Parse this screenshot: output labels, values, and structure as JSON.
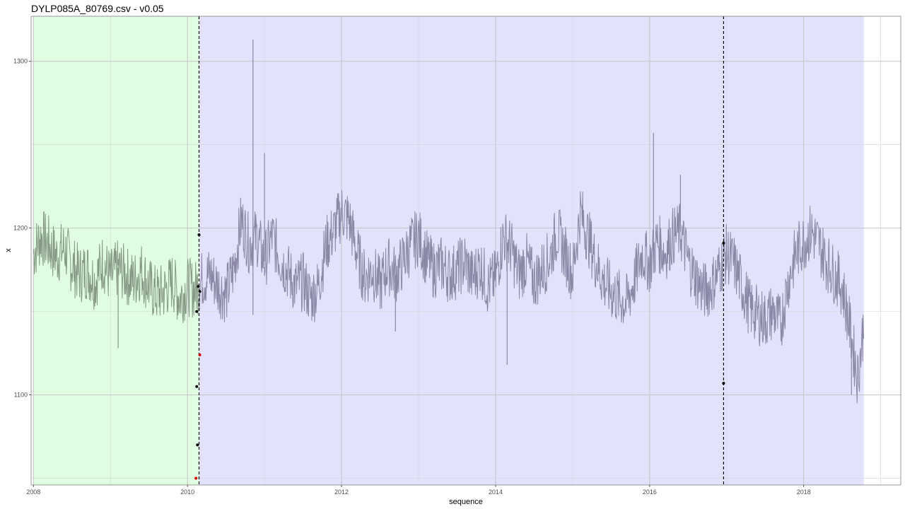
{
  "chart_data": {
    "type": "line",
    "title": "DYLP085A_80769.csv - v0.05",
    "xlabel": "sequence",
    "ylabel": "x",
    "x_ticks": [
      "2008",
      "2010",
      "2012",
      "2014",
      "2016",
      "2018"
    ],
    "y_ticks": [
      "1100",
      "1200",
      "1300"
    ],
    "xlim": [
      2007.97,
      2019.26
    ],
    "ylim": [
      1046,
      1327
    ],
    "grid": true,
    "segments": [
      {
        "start": 2008.0,
        "end": 2010.15,
        "color": "#e1fde1",
        "line_color": "#859985"
      },
      {
        "start": 2010.15,
        "end": 2018.78,
        "color": "#e3e2fd",
        "line_color": "#8a88a4"
      }
    ],
    "changepoints": [
      2010.15,
      2016.96
    ],
    "series": [
      {
        "x": [
          2008.0,
          2008.1,
          2008.2,
          2008.3,
          2008.4,
          2008.5,
          2008.6,
          2008.7,
          2008.8,
          2008.9,
          2009.0,
          2009.1,
          2009.2,
          2009.3,
          2009.4,
          2009.5,
          2009.6,
          2009.7,
          2009.8,
          2009.9,
          2010.0,
          2010.1,
          2010.2,
          2010.3,
          2010.4,
          2010.5,
          2010.6,
          2010.7,
          2010.8,
          2010.9,
          2011.0,
          2011.1,
          2011.2,
          2011.3,
          2011.4,
          2011.5,
          2011.6,
          2011.7,
          2011.8,
          2011.9,
          2012.0,
          2012.1,
          2012.2,
          2012.3,
          2012.4,
          2012.5,
          2012.6,
          2012.7,
          2012.8,
          2012.9,
          2013.0,
          2013.1,
          2013.2,
          2013.3,
          2013.4,
          2013.5,
          2013.6,
          2013.7,
          2013.8,
          2013.9,
          2014.0,
          2014.1,
          2014.2,
          2014.3,
          2014.4,
          2014.5,
          2014.6,
          2014.7,
          2014.8,
          2014.9,
          2015.0,
          2015.1,
          2015.2,
          2015.3,
          2015.4,
          2015.5,
          2015.6,
          2015.7,
          2015.8,
          2015.9,
          2016.0,
          2016.1,
          2016.2,
          2016.3,
          2016.4,
          2016.5,
          2016.6,
          2016.7,
          2016.8,
          2016.9,
          2017.0,
          2017.1,
          2017.2,
          2017.3,
          2017.4,
          2017.5,
          2017.6,
          2017.7,
          2017.8,
          2017.9,
          2018.0,
          2018.1,
          2018.2,
          2018.3,
          2018.4,
          2018.5,
          2018.6,
          2018.7,
          2018.78
        ],
        "y": [
          1185,
          1195,
          1190,
          1183,
          1188,
          1178,
          1172,
          1175,
          1168,
          1180,
          1170,
          1176,
          1172,
          1168,
          1175,
          1165,
          1160,
          1162,
          1168,
          1158,
          1165,
          1163,
          1170,
          1172,
          1165,
          1160,
          1175,
          1205,
          1190,
          1195,
          1180,
          1195,
          1182,
          1174,
          1165,
          1168,
          1158,
          1165,
          1190,
          1198,
          1210,
          1205,
          1185,
          1170,
          1175,
          1165,
          1178,
          1172,
          1180,
          1190,
          1195,
          1182,
          1175,
          1178,
          1172,
          1175,
          1180,
          1170,
          1178,
          1165,
          1170,
          1195,
          1188,
          1172,
          1180,
          1168,
          1175,
          1182,
          1198,
          1185,
          1172,
          1210,
          1195,
          1180,
          1168,
          1162,
          1158,
          1155,
          1168,
          1185,
          1178,
          1192,
          1185,
          1195,
          1198,
          1180,
          1170,
          1162,
          1165,
          1175,
          1185,
          1178,
          1165,
          1152,
          1148,
          1145,
          1150,
          1142,
          1168,
          1185,
          1192,
          1198,
          1190,
          1180,
          1172,
          1165,
          1140,
          1110,
          1142
        ]
      }
    ],
    "spikes": [
      {
        "x": 2009.1,
        "y": 1128
      },
      {
        "x": 2010.85,
        "y": 1313
      },
      {
        "x": 2010.85,
        "y": 1148
      },
      {
        "x": 2011.0,
        "y": 1245
      },
      {
        "x": 2012.7,
        "y": 1138
      },
      {
        "x": 2014.15,
        "y": 1118
      },
      {
        "x": 2016.05,
        "y": 1257
      },
      {
        "x": 2016.4,
        "y": 1232
      },
      {
        "x": 2018.62,
        "y": 1100
      }
    ],
    "markers": [
      {
        "x": 2010.12,
        "y": 1150,
        "color": "#000000"
      },
      {
        "x": 2010.12,
        "y": 1105,
        "color": "#000000"
      },
      {
        "x": 2010.13,
        "y": 1070,
        "color": "#000000"
      },
      {
        "x": 2010.11,
        "y": 1050,
        "color": "#d40000"
      },
      {
        "x": 2010.15,
        "y": 1196,
        "color": "#000000"
      },
      {
        "x": 2010.14,
        "y": 1165,
        "color": "#000000"
      },
      {
        "x": 2010.16,
        "y": 1162,
        "color": "#000000"
      },
      {
        "x": 2010.16,
        "y": 1124,
        "color": "#d40000"
      },
      {
        "x": 2016.96,
        "y": 1191,
        "color": "#000000"
      },
      {
        "x": 2016.96,
        "y": 1107,
        "color": "#000000"
      }
    ]
  }
}
